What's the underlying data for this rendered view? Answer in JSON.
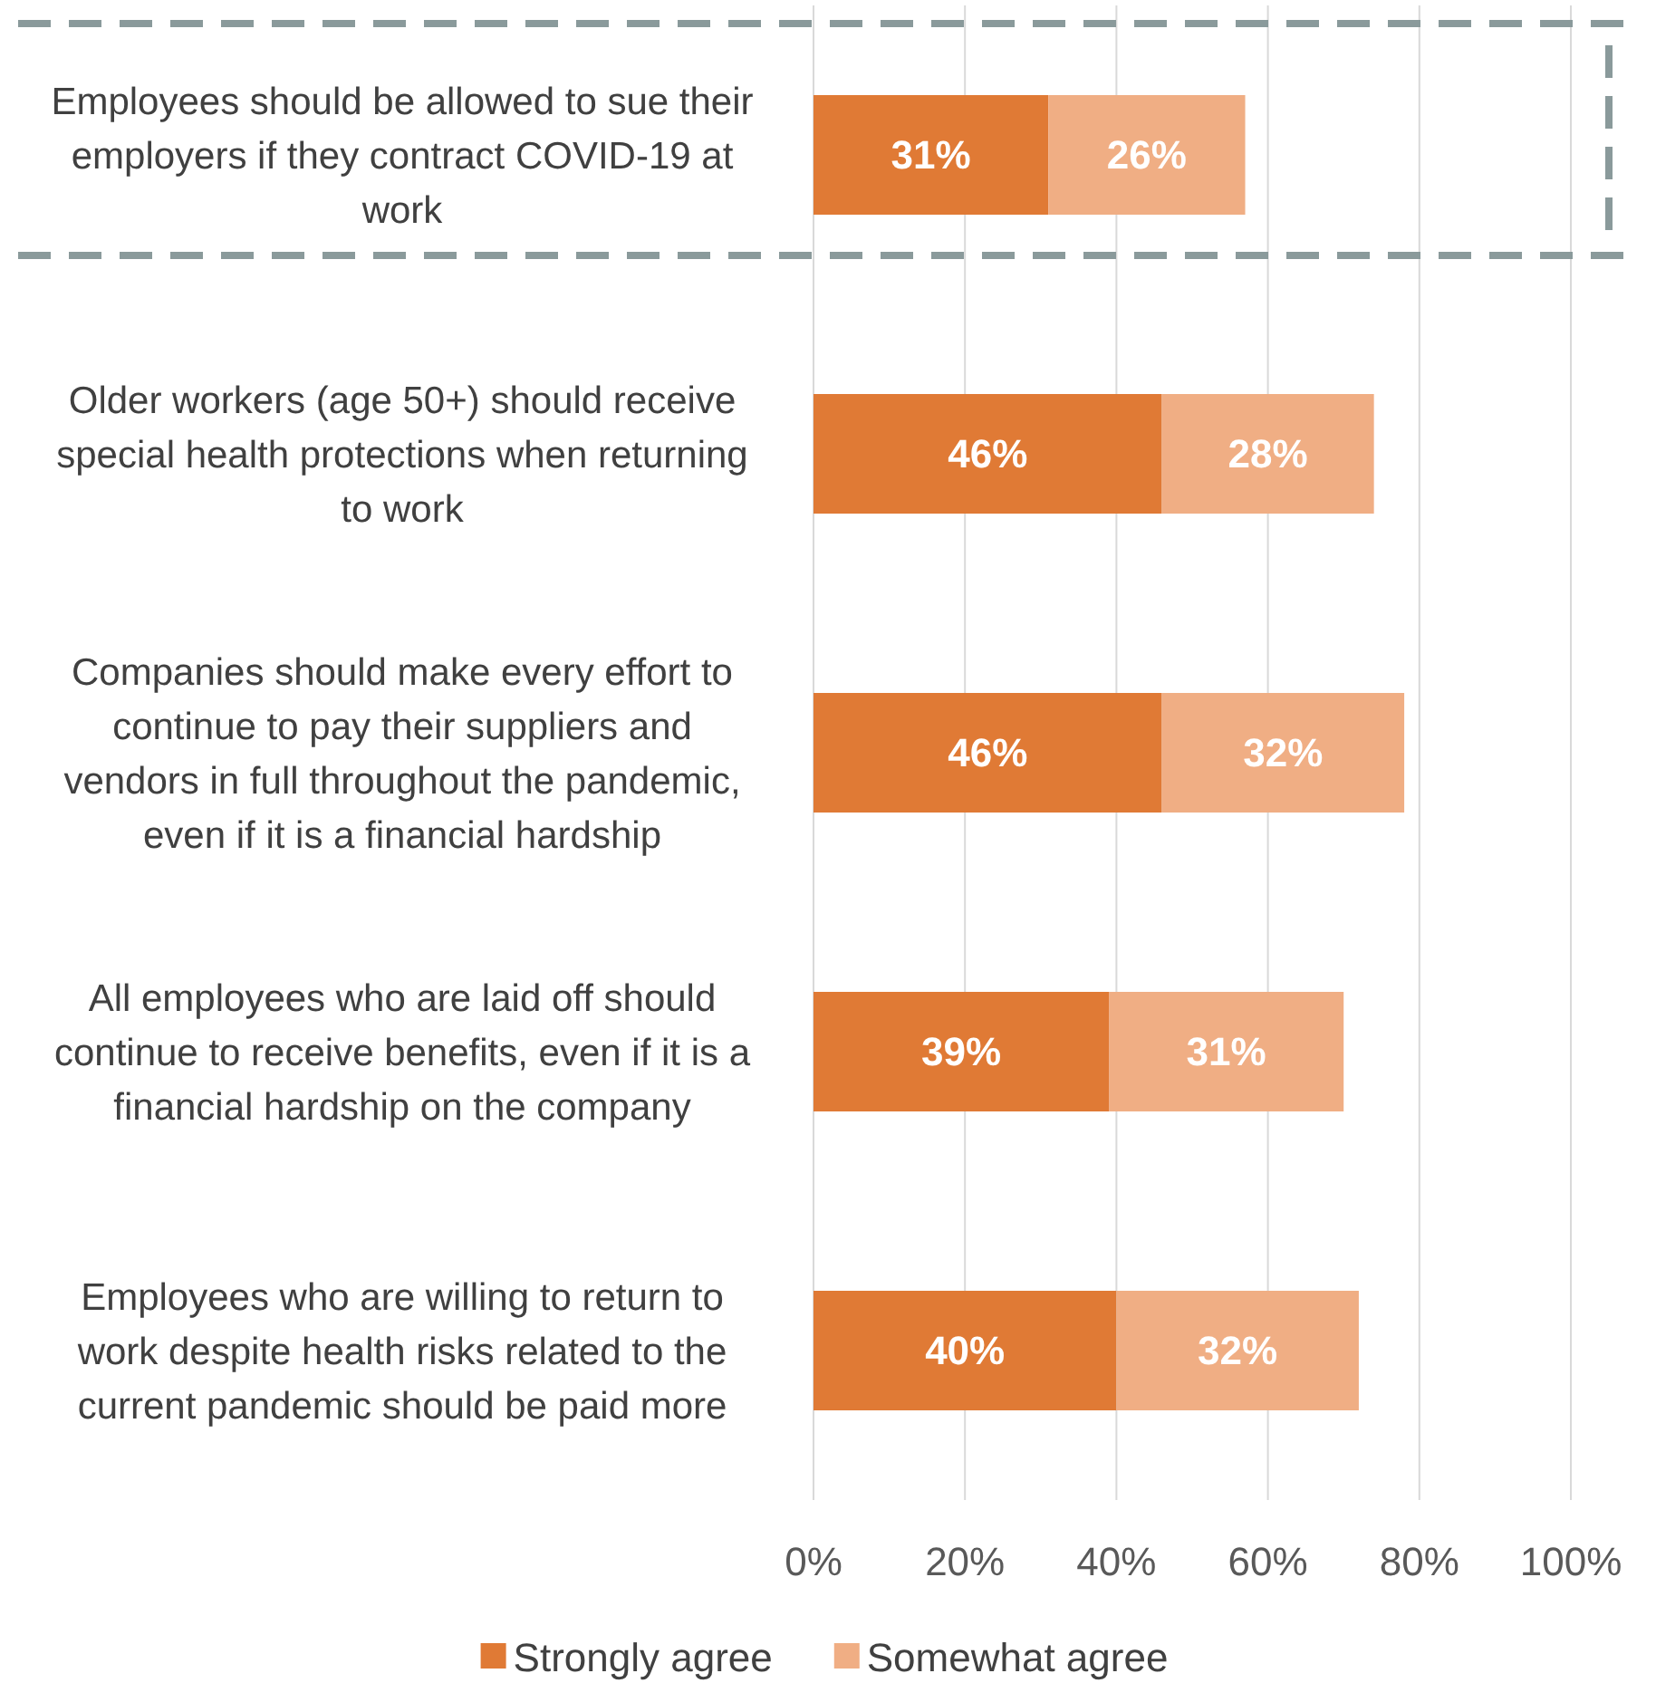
{
  "chart_data": {
    "type": "bar",
    "orientation": "horizontal",
    "stacked": true,
    "categories": [
      "Employees should be allowed to sue their employers if they contract COVID-19 at work",
      "Older workers (age 50+) should receive special health protections when returning to work",
      "Companies should make every effort to continue to pay their suppliers and vendors in full throughout the pandemic, even if it is a financial hardship",
      "All employees who are laid off should continue to receive benefits, even if it is a financial hardship on the company",
      "Employees who are willing to return to work despite health risks related to the current pandemic should be paid more"
    ],
    "series": [
      {
        "name": "Strongly agree",
        "color": "#e07a35",
        "values": [
          31,
          46,
          46,
          39,
          40
        ],
        "value_labels": [
          "31%",
          "46%",
          "46%",
          "39%",
          "40%"
        ]
      },
      {
        "name": "Somewhat agree",
        "color": "#f0ae84",
        "values": [
          26,
          28,
          32,
          31,
          32
        ],
        "value_labels": [
          "26%",
          "28%",
          "32%",
          "31%",
          "32%"
        ]
      }
    ],
    "xlim": [
      0,
      100
    ],
    "xticks": [
      {
        "value": 0,
        "label": "0%"
      },
      {
        "value": 20,
        "label": "20%"
      },
      {
        "value": 40,
        "label": "40%"
      },
      {
        "value": 60,
        "label": "60%"
      },
      {
        "value": 80,
        "label": "80%"
      },
      {
        "value": 100,
        "label": "100%"
      }
    ],
    "grid": "x",
    "legend": "bottom"
  }
}
